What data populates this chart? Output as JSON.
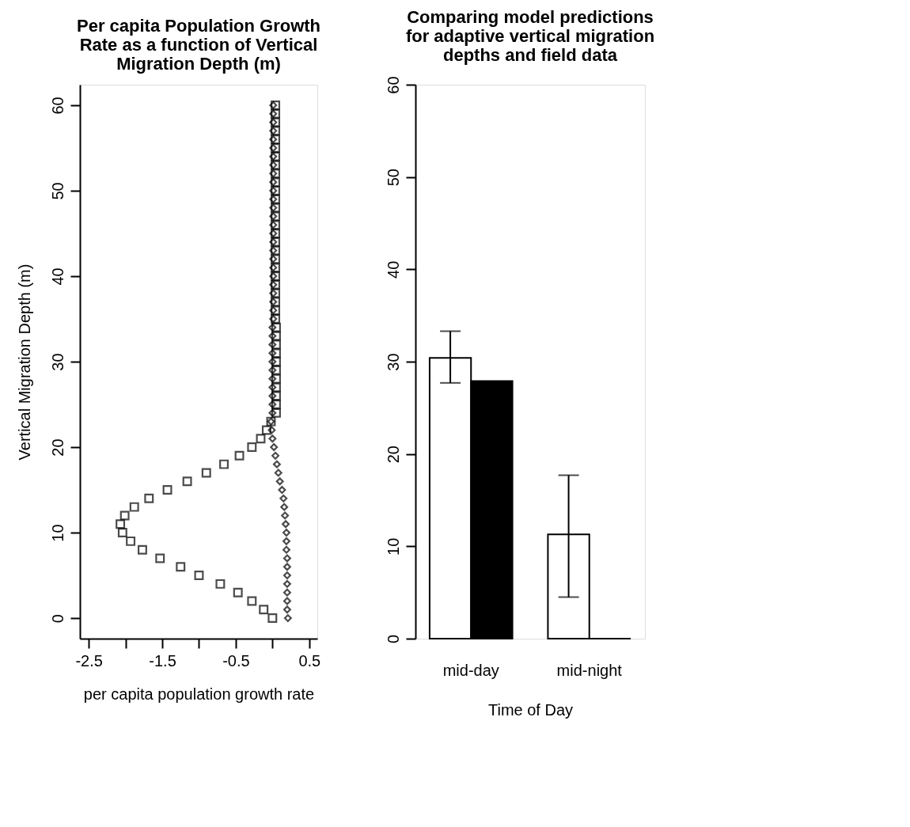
{
  "chart_data": [
    {
      "type": "scatter",
      "title": "Per capita Population Growth\nRate as a function of Vertical\nMigration Depth (m)",
      "xlabel": "per capita population growth rate",
      "ylabel": "Vertical Migration Depth (m)",
      "xlim": [
        -2.62,
        0.61
      ],
      "ylim": [
        -2.4,
        62.4
      ],
      "xticks": [
        -2.5,
        {
          "value": -2,
          "label": null
        },
        -1.5,
        {
          "value": -1,
          "label": null
        },
        -0.5,
        {
          "value": 0,
          "label": null
        },
        0.5
      ],
      "yticks": [
        0,
        10,
        20,
        30,
        40,
        50,
        60
      ],
      "series": [
        {
          "color": "#000000",
          "marker": "square",
          "x": [
            0.0,
            -0.12,
            -0.28,
            -0.47,
            -0.71,
            -1.0,
            -1.25,
            -1.53,
            -1.77,
            -1.93,
            -2.04,
            -2.07,
            -2.01,
            -1.88,
            -1.68,
            -1.43,
            -1.16,
            -0.9,
            -0.66,
            -0.45,
            -0.28,
            -0.16,
            -0.08,
            -0.02,
            0.05,
            0.05,
            0.05,
            0.05,
            0.05,
            0.05,
            0.05,
            0.05,
            0.05,
            0.05,
            0.05,
            0.04,
            0.04,
            0.04,
            0.04,
            0.04,
            0.04,
            0.04,
            0.04,
            0.04,
            0.04,
            0.04,
            0.04,
            0.04,
            0.04,
            0.04,
            0.04,
            0.04,
            0.04,
            0.04,
            0.04,
            0.04,
            0.04,
            0.04,
            0.04,
            0.04,
            0.04
          ],
          "values": [
            0,
            1,
            2,
            3,
            4,
            5,
            6,
            7,
            8,
            9,
            10,
            11,
            12,
            13,
            14,
            15,
            16,
            17,
            18,
            19,
            20,
            21,
            22,
            23,
            24,
            25,
            26,
            27,
            28,
            29,
            30,
            31,
            32,
            33,
            34,
            35,
            36,
            37,
            38,
            39,
            40,
            41,
            42,
            43,
            44,
            45,
            46,
            47,
            48,
            49,
            50,
            51,
            52,
            53,
            54,
            55,
            56,
            57,
            58,
            59,
            60
          ]
        },
        {
          "color": "#000000",
          "marker": "diamond",
          "x": [
            0.21,
            0.2,
            0.2,
            0.2,
            0.2,
            0.2,
            0.2,
            0.2,
            0.19,
            0.19,
            0.19,
            0.18,
            0.17,
            0.16,
            0.15,
            0.13,
            0.1,
            0.08,
            0.06,
            0.04,
            0.02,
            0.0,
            -0.01,
            -0.02,
            0.0,
            0.0,
            0.0,
            0.0,
            0.0,
            0.0,
            0.0,
            0.0,
            0.0,
            0.0,
            0.0,
            0.01,
            0.01,
            0.01,
            0.01,
            0.01,
            0.01,
            0.01,
            0.01,
            0.01,
            0.01,
            0.01,
            0.01,
            0.01,
            0.01,
            0.01,
            0.01,
            0.01,
            0.01,
            0.01,
            0.01,
            0.01,
            0.01,
            0.01,
            0.01,
            0.01,
            0.01
          ],
          "values": [
            0,
            1,
            2,
            3,
            4,
            5,
            6,
            7,
            8,
            9,
            10,
            11,
            12,
            13,
            14,
            15,
            16,
            17,
            18,
            19,
            20,
            21,
            22,
            23,
            24,
            25,
            26,
            27,
            28,
            29,
            30,
            31,
            32,
            33,
            34,
            35,
            36,
            37,
            38,
            39,
            40,
            41,
            42,
            43,
            44,
            45,
            46,
            47,
            48,
            49,
            50,
            51,
            52,
            53,
            54,
            55,
            56,
            57,
            58,
            59,
            60
          ]
        }
      ]
    },
    {
      "type": "bar",
      "title": "Comparing model predictions\nfor adaptive vertical migration\ndepths and field data",
      "xlabel": "Time of Day",
      "categories": [
        "mid-day",
        "mid-night"
      ],
      "ylim": [
        0,
        60
      ],
      "yticks": [
        0,
        10,
        20,
        30,
        40,
        50,
        60
      ],
      "series": [
        {
          "color": "#ffffff",
          "values": [
            30.4,
            11.3
          ],
          "errors": [
            [
              27.7,
              33.3
            ],
            [
              4.5,
              17.7
            ]
          ]
        },
        {
          "color": "#000000",
          "values": [
            27.9,
            0
          ]
        }
      ]
    }
  ]
}
